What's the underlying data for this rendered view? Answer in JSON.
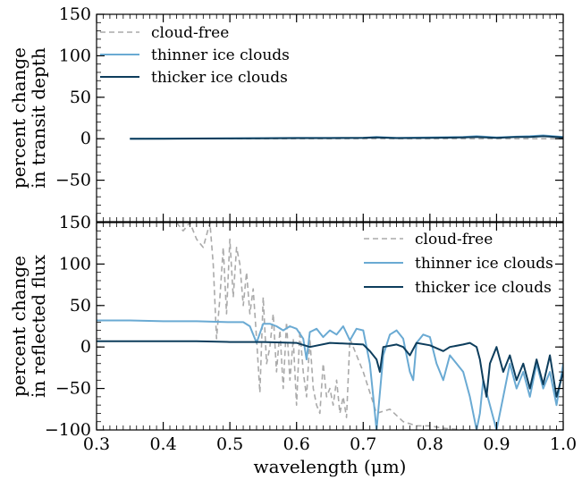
{
  "chart_data": [
    {
      "type": "line",
      "panel": "top",
      "ylabel_line1": "percent change",
      "ylabel_line2": "in transit depth",
      "xlim": [
        0.3,
        1.0
      ],
      "ylim": [
        -100,
        150
      ],
      "yticks": [
        -50,
        0,
        50,
        100,
        150
      ],
      "ytick_labels": [
        "−50",
        "0",
        "50",
        "100",
        "150"
      ],
      "legend_position": "top-left",
      "series": [
        {
          "name": "cloud-free",
          "color": "#aaaaaa",
          "style": "dashed",
          "x": [
            0.35,
            1.0
          ],
          "y": [
            0,
            0
          ]
        },
        {
          "name": "thinner ice clouds",
          "color": "#6aaad3",
          "style": "solid",
          "x": [
            0.35,
            0.4,
            0.45,
            0.5,
            0.55,
            0.6,
            0.65,
            0.7,
            0.72,
            0.75,
            0.8,
            0.85,
            0.87,
            0.9,
            0.93,
            0.95,
            0.97,
            1.0
          ],
          "y": [
            0,
            0.2,
            0.3,
            0.5,
            0.8,
            1,
            1,
            1.2,
            2,
            1,
            1.5,
            2,
            3,
            1.5,
            2.5,
            3,
            4,
            2
          ]
        },
        {
          "name": "thicker ice clouds",
          "color": "#0d3d5c",
          "style": "solid",
          "x": [
            0.35,
            0.4,
            0.45,
            0.5,
            0.55,
            0.6,
            0.65,
            0.7,
            0.72,
            0.75,
            0.8,
            0.85,
            0.87,
            0.9,
            0.93,
            0.95,
            0.97,
            1.0
          ],
          "y": [
            0,
            0,
            0.2,
            0.3,
            0.5,
            0.8,
            0.8,
            1,
            1.5,
            0.8,
            1,
            1.5,
            2,
            1,
            2,
            2,
            3,
            1.5
          ]
        }
      ]
    },
    {
      "type": "line",
      "panel": "bottom",
      "xlabel": "wavelength (μm)",
      "ylabel_line1": "percent change",
      "ylabel_line2": "in reflected flux",
      "xlim": [
        0.3,
        1.0
      ],
      "ylim": [
        -100,
        150
      ],
      "xticks": [
        0.3,
        0.4,
        0.5,
        0.6,
        0.7,
        0.8,
        0.9,
        1.0
      ],
      "xtick_labels": [
        "0.3",
        "0.4",
        "0.5",
        "0.6",
        "0.7",
        "0.8",
        "0.9",
        "1.0"
      ],
      "yticks": [
        -100,
        -50,
        0,
        50,
        100,
        150
      ],
      "ytick_labels": [
        "−100",
        "−50",
        "0",
        "50",
        "100",
        "150"
      ],
      "legend_position": "top-right",
      "series": [
        {
          "name": "cloud-free",
          "color": "#aaaaaa",
          "style": "dashed",
          "x": [
            0.42,
            0.43,
            0.44,
            0.45,
            0.46,
            0.47,
            0.475,
            0.48,
            0.485,
            0.49,
            0.495,
            0.5,
            0.505,
            0.51,
            0.515,
            0.52,
            0.525,
            0.53,
            0.535,
            0.54,
            0.545,
            0.55,
            0.555,
            0.56,
            0.565,
            0.57,
            0.575,
            0.58,
            0.585,
            0.59,
            0.595,
            0.6,
            0.605,
            0.61,
            0.615,
            0.62,
            0.625,
            0.63,
            0.635,
            0.64,
            0.645,
            0.65,
            0.655,
            0.66,
            0.665,
            0.67,
            0.675,
            0.68,
            0.7,
            0.72,
            0.74,
            0.76,
            0.78,
            0.8,
            0.82,
            0.85,
            0.88,
            0.92,
            0.96,
            1.0
          ],
          "y": [
            150,
            140,
            150,
            130,
            120,
            150,
            100,
            10,
            60,
            120,
            40,
            130,
            60,
            120,
            100,
            50,
            90,
            40,
            70,
            10,
            -55,
            60,
            -20,
            0,
            40,
            -30,
            20,
            -50,
            30,
            -40,
            10,
            -70,
            20,
            -30,
            -60,
            10,
            -50,
            -70,
            -80,
            -20,
            -60,
            -50,
            -70,
            -40,
            -80,
            -60,
            -85,
            10,
            -30,
            -80,
            -75,
            -90,
            -95,
            -95,
            -98,
            -100,
            -100,
            -100,
            -100,
            -100
          ]
        },
        {
          "name": "thinner ice clouds",
          "color": "#6aaad3",
          "style": "solid",
          "x": [
            0.3,
            0.35,
            0.4,
            0.45,
            0.5,
            0.52,
            0.53,
            0.54,
            0.55,
            0.56,
            0.57,
            0.58,
            0.59,
            0.6,
            0.61,
            0.615,
            0.62,
            0.63,
            0.64,
            0.65,
            0.66,
            0.67,
            0.68,
            0.69,
            0.7,
            0.71,
            0.715,
            0.72,
            0.73,
            0.74,
            0.75,
            0.76,
            0.77,
            0.775,
            0.78,
            0.79,
            0.8,
            0.81,
            0.82,
            0.83,
            0.84,
            0.85,
            0.86,
            0.87,
            0.875,
            0.88,
            0.89,
            0.9,
            0.91,
            0.92,
            0.93,
            0.94,
            0.95,
            0.96,
            0.97,
            0.98,
            0.99,
            1.0
          ],
          "y": [
            32,
            32,
            31,
            31,
            30,
            30,
            25,
            5,
            28,
            28,
            25,
            20,
            25,
            22,
            10,
            -15,
            18,
            22,
            12,
            20,
            15,
            25,
            8,
            22,
            20,
            -20,
            -60,
            -100,
            -10,
            15,
            20,
            10,
            -30,
            -40,
            5,
            15,
            12,
            -20,
            -40,
            -10,
            -20,
            -30,
            -60,
            -100,
            -80,
            -40,
            -70,
            -100,
            -60,
            -20,
            -50,
            -30,
            -60,
            -20,
            -50,
            -30,
            -70,
            -20
          ]
        },
        {
          "name": "thicker ice clouds",
          "color": "#0d3d5c",
          "style": "solid",
          "x": [
            0.3,
            0.35,
            0.4,
            0.45,
            0.5,
            0.55,
            0.6,
            0.62,
            0.65,
            0.7,
            0.71,
            0.72,
            0.725,
            0.73,
            0.75,
            0.76,
            0.77,
            0.78,
            0.8,
            0.82,
            0.83,
            0.85,
            0.86,
            0.87,
            0.875,
            0.88,
            0.885,
            0.89,
            0.9,
            0.91,
            0.92,
            0.93,
            0.94,
            0.95,
            0.96,
            0.97,
            0.98,
            0.99,
            1.0
          ],
          "y": [
            7,
            7,
            7,
            7,
            6,
            6,
            5,
            0,
            5,
            3,
            -5,
            -15,
            -30,
            0,
            3,
            0,
            -10,
            5,
            2,
            -5,
            0,
            3,
            5,
            0,
            -15,
            -40,
            -60,
            -20,
            0,
            -30,
            -10,
            -40,
            -20,
            -50,
            -15,
            -45,
            -10,
            -60,
            -30
          ]
        }
      ]
    }
  ]
}
